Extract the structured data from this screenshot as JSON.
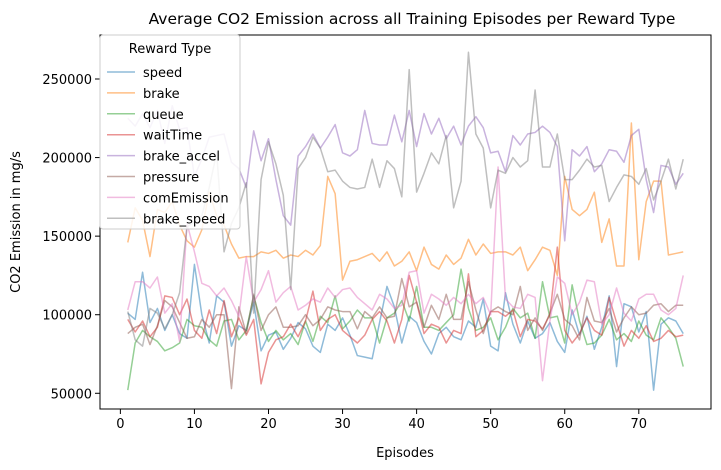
{
  "chart_data": {
    "type": "line",
    "title": "Average CO2 Emission across all Training Episodes per Reward Type",
    "xlabel": "Episodes",
    "ylabel": "CO2 Emission in mg/s",
    "xlim": [
      -2.75,
      79.75
    ],
    "ylim": [
      40000,
      278000
    ],
    "xticks": [
      0,
      10,
      20,
      30,
      40,
      50,
      60,
      70
    ],
    "yticks": [
      50000,
      100000,
      150000,
      200000,
      250000
    ],
    "ytick_labels": [
      "50000",
      "100000",
      "150000",
      "200000",
      "250000"
    ],
    "grid": false,
    "legend": {
      "title": "Reward Type",
      "placement": "top-left"
    },
    "series": [
      {
        "name": "speed",
        "color": "#1f77b4",
        "values": [
          101000,
          97000,
          127000,
          95000,
          104000,
          90000,
          100000,
          88000,
          85000,
          132000,
          100000,
          82000,
          112000,
          108000,
          80000,
          93000,
          90000,
          108000,
          77000,
          87000,
          89000,
          78000,
          85000,
          95000,
          91000,
          80000,
          76000,
          94000,
          90000,
          98000,
          87000,
          74000,
          73000,
          72000,
          95000,
          118000,
          105000,
          82000,
          99000,
          95000,
          83000,
          75000,
          88000,
          92000,
          86000,
          84000,
          96000,
          92000,
          110000,
          80000,
          77000,
          114000,
          94000,
          82000,
          96000,
          85000,
          88000,
          95000,
          83000,
          76000,
          103000,
          87000,
          99000,
          78000,
          92000,
          112000,
          67000,
          107000,
          105000,
          89000,
          102000,
          52000,
          94000,
          98000,
          96000,
          88000
        ]
      },
      {
        "name": "brake",
        "color": "#ff7f0e",
        "values": [
          146000,
          168000,
          160000,
          137000,
          167000,
          165000,
          172000,
          157000,
          147000,
          143000,
          154000,
          178000,
          163000,
          157000,
          145000,
          136000,
          137000,
          137000,
          140000,
          139000,
          141000,
          136000,
          138000,
          137000,
          141000,
          138000,
          144000,
          188000,
          177000,
          122000,
          134000,
          135000,
          137000,
          139000,
          134000,
          140000,
          131000,
          134000,
          140000,
          128000,
          143000,
          132000,
          129000,
          138000,
          132000,
          136000,
          148000,
          138000,
          145000,
          139000,
          140000,
          140000,
          138000,
          143000,
          128000,
          135000,
          143000,
          141000,
          125000,
          188000,
          167000,
          163000,
          167000,
          178000,
          146000,
          161000,
          131000,
          131000,
          222000,
          135000,
          172000,
          185000,
          185000,
          138000,
          139000,
          140000
        ]
      },
      {
        "name": "queue",
        "color": "#2ca02c",
        "values": [
          52000,
          82000,
          90000,
          86000,
          83000,
          77000,
          79000,
          82000,
          97000,
          93000,
          92000,
          84000,
          80000,
          96000,
          97000,
          84000,
          90000,
          112000,
          95000,
          83000,
          90000,
          84000,
          88000,
          81000,
          96000,
          83000,
          99000,
          95000,
          112000,
          91000,
          96000,
          103000,
          98000,
          98000,
          82000,
          98000,
          101000,
          109000,
          96000,
          118000,
          92000,
          92000,
          90000,
          95000,
          100000,
          129000,
          104000,
          90000,
          92000,
          98000,
          84000,
          92000,
          104000,
          98000,
          101000,
          85000,
          121000,
          98000,
          99000,
          82000,
          119000,
          96000,
          81000,
          82000,
          87000,
          97000,
          84000,
          88000,
          83000,
          96000,
          87000,
          84000,
          98000,
          92000,
          85000,
          67000
        ]
      },
      {
        "name": "waitTime",
        "color": "#d62728",
        "values": [
          97000,
          89000,
          96000,
          86000,
          92000,
          112000,
          111000,
          100000,
          110000,
          90000,
          85000,
          103000,
          88000,
          109000,
          86000,
          98000,
          87000,
          97000,
          56000,
          76000,
          84000,
          86000,
          94000,
          86000,
          96000,
          115000,
          90000,
          97000,
          100000,
          90000,
          86000,
          82000,
          87000,
          97000,
          102000,
          96000,
          82000,
          97000,
          125000,
          108000,
          88000,
          94000,
          92000,
          82000,
          90000,
          88000,
          126000,
          86000,
          90000,
          102000,
          102000,
          99000,
          103000,
          86000,
          97000,
          96000,
          91000,
          100000,
          143000,
          90000,
          82000,
          88000,
          98000,
          90000,
          87000,
          111000,
          95000,
          80000,
          90000,
          85000,
          93000,
          83000,
          85000,
          90000,
          86000,
          87000
        ]
      },
      {
        "name": "brake_accel",
        "color": "#9467bd",
        "values": [
          225000,
          220000,
          228000,
          219000,
          230000,
          209000,
          233000,
          218000,
          219000,
          188000,
          199000,
          213000,
          214000,
          215000,
          197000,
          193000,
          181000,
          217000,
          198000,
          212000,
          186000,
          163000,
          157000,
          201000,
          207000,
          215000,
          206000,
          213000,
          221000,
          203000,
          201000,
          205000,
          230000,
          209000,
          208000,
          208000,
          227000,
          210000,
          230000,
          207000,
          228000,
          215000,
          225000,
          212000,
          220000,
          208000,
          220000,
          226000,
          219000,
          203000,
          204000,
          191000,
          214000,
          208000,
          215000,
          216000,
          220000,
          216000,
          207000,
          147000,
          205000,
          201000,
          207000,
          191000,
          196000,
          205000,
          204000,
          197000,
          214000,
          218000,
          186000,
          165000,
          195000,
          194000,
          183000,
          190000
        ]
      },
      {
        "name": "pressure",
        "color": "#8c564b",
        "values": [
          88000,
          92000,
          94000,
          81000,
          93000,
          109000,
          105000,
          95000,
          85000,
          86000,
          97000,
          92000,
          100000,
          100000,
          53000,
          105000,
          88000,
          113000,
          90000,
          100000,
          105000,
          92000,
          92000,
          93000,
          100000,
          93000,
          97000,
          105000,
          103000,
          102000,
          102000,
          91000,
          102000,
          98000,
          105000,
          98000,
          99000,
          123000,
          105000,
          108000,
          92000,
          106000,
          97000,
          113000,
          97000,
          97000,
          121000,
          103000,
          88000,
          102000,
          105000,
          102000,
          100000,
          118000,
          90000,
          98000,
          90000,
          101000,
          113000,
          97000,
          93000,
          84000,
          111000,
          96000,
          95000,
          104000,
          89000,
          98000,
          105000,
          100000,
          101000,
          106000,
          107000,
          102000,
          106000,
          106000
        ]
      },
      {
        "name": "comEmission",
        "color": "#e377c2",
        "values": [
          103000,
          121000,
          121000,
          117000,
          124000,
          101000,
          107000,
          83000,
          158000,
          140000,
          120000,
          118000,
          112000,
          117000,
          109000,
          99000,
          137000,
          108000,
          116000,
          128000,
          108000,
          114000,
          118000,
          103000,
          106000,
          110000,
          108000,
          117000,
          111000,
          116000,
          117000,
          111000,
          107000,
          103000,
          113000,
          110000,
          104000,
          106000,
          127000,
          128000,
          101000,
          113000,
          110000,
          106000,
          111000,
          107000,
          113000,
          107000,
          111000,
          100000,
          194000,
          110000,
          105000,
          104000,
          113000,
          111000,
          58000,
          96000,
          124000,
          120000,
          100000,
          108000,
          122000,
          121000,
          94000,
          100000,
          117000,
          101000,
          96000,
          110000,
          113000,
          113000,
          103000,
          100000,
          104000,
          125000
        ]
      },
      {
        "name": "brake_speed",
        "color": "#7f7f7f",
        "values": [
          102000,
          84000,
          80000,
          104000,
          101000,
          91000,
          100000,
          114000,
          156000,
          159000,
          163000,
          181000,
          203000,
          140000,
          158000,
          168000,
          184000,
          101000,
          186000,
          210000,
          196000,
          176000,
          116000,
          193000,
          200000,
          213000,
          206000,
          191000,
          192000,
          185000,
          181000,
          180000,
          181000,
          199000,
          181000,
          198000,
          193000,
          175000,
          256000,
          178000,
          190000,
          203000,
          196000,
          214000,
          168000,
          185000,
          267000,
          215000,
          206000,
          168000,
          192000,
          190000,
          200000,
          194000,
          198000,
          243000,
          194000,
          194000,
          215000,
          186000,
          186000,
          192000,
          199000,
          194000,
          195000,
          172000,
          181000,
          189000,
          188000,
          183000,
          193000,
          173000,
          185000,
          199000,
          180000,
          199000
        ]
      }
    ]
  }
}
